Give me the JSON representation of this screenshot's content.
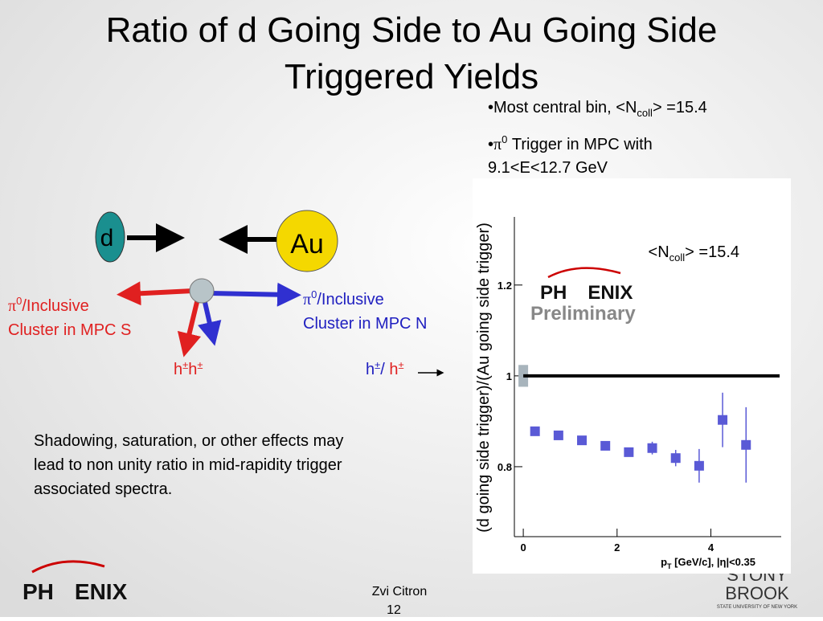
{
  "title": [
    "Ratio of d Going Side to Au Going Side",
    "Triggered Yields"
  ],
  "bullets": [
    {
      "pre": "•Most central bin, <N",
      "sub": "coll",
      "post": "> =15.4"
    },
    {
      "pre": "•",
      "pi": "π",
      "sup": "0",
      "post": " Trigger in MPC with",
      "line2": "9.1<E<12.7 GeV"
    }
  ],
  "diagram": {
    "d": "d",
    "au": "Au",
    "left_label": {
      "pi": "π",
      "sup": "0",
      "rest": "/Inclusive",
      "line2": "Cluster in MPC S"
    },
    "right_label": {
      "pi": "π",
      "sup": "0",
      "rest": "/Inclusive",
      "line2": "Cluster in MPC N"
    },
    "pair_label": {
      "h1": "h",
      "s1": "±",
      "h2": "h",
      "s2": "±"
    },
    "ratio_label": {
      "h1": "h",
      "s1": "±",
      "slash": "/ ",
      "h2": "h",
      "s2": "±"
    }
  },
  "paragraph": [
    "Shadowing, saturation, or other effects may",
    "lead to non unity ratio in mid-rapidity trigger",
    "associated spectra."
  ],
  "footer": {
    "logo": {
      "a": "PH",
      "b": "ENIX"
    },
    "author": "Zvi Citron",
    "page": "12",
    "univ": [
      "STONY",
      "BROOK",
      "STATE UNIVERSITY OF NEW YORK"
    ]
  },
  "chart_data": {
    "type": "scatter",
    "y_label": "(d going side trigger)/(Au going side trigger)",
    "x_label": {
      "p": "p",
      "sub": "T",
      "rest": " [GeV/c], |η|<0.35"
    },
    "annotation": {
      "pre": "<N",
      "sub": "coll",
      "post": "> =15.4"
    },
    "watermark": {
      "a": "PH",
      "b": "ENIX",
      "c": "Preliminary"
    },
    "xlim": [
      -0.19,
      5.5
    ],
    "ylim": [
      0.646,
      1.35
    ],
    "xticks": [
      0,
      2,
      4
    ],
    "yticks": [
      0.8,
      1,
      1.2
    ],
    "reference_line": 1,
    "norm_box": {
      "x": 0,
      "y": 1,
      "error": 0.024
    },
    "series": [
      {
        "color": "#5a5ad6",
        "x": [
          0.25,
          0.75,
          1.25,
          1.75,
          2.25,
          2.75,
          3.25,
          3.75,
          4.25,
          4.75
        ],
        "values": [
          0.878,
          0.869,
          0.858,
          0.846,
          0.832,
          0.841,
          0.819,
          0.802,
          0.903,
          0.848
        ],
        "errors": [
          0.006,
          0.006,
          0.006,
          0.007,
          0.008,
          0.014,
          0.018,
          0.037,
          0.06,
          0.083
        ]
      }
    ]
  }
}
